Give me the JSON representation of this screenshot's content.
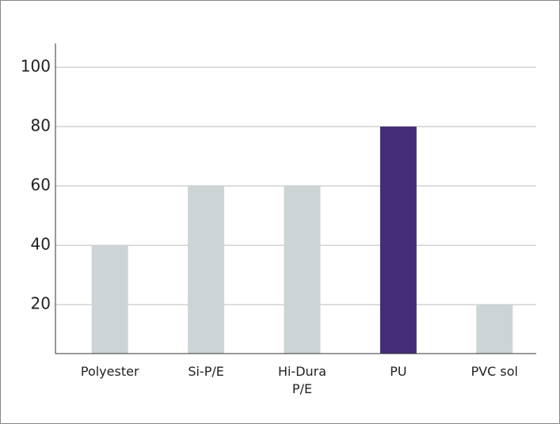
{
  "chart_data": {
    "type": "bar",
    "categories": [
      "Polyester",
      "Si-P/E",
      "Hi-Dura P/E",
      "PU",
      "PVC sol"
    ],
    "values": [
      40,
      60,
      60,
      80,
      20
    ],
    "colors": [
      "#cdd4d6",
      "#cdd4d6",
      "#cdd4d6",
      "#452c78",
      "#cdd4d6"
    ],
    "ylim": [
      3.5,
      108
    ],
    "yticks": [
      20,
      40,
      60,
      80,
      100
    ],
    "grid": true
  }
}
